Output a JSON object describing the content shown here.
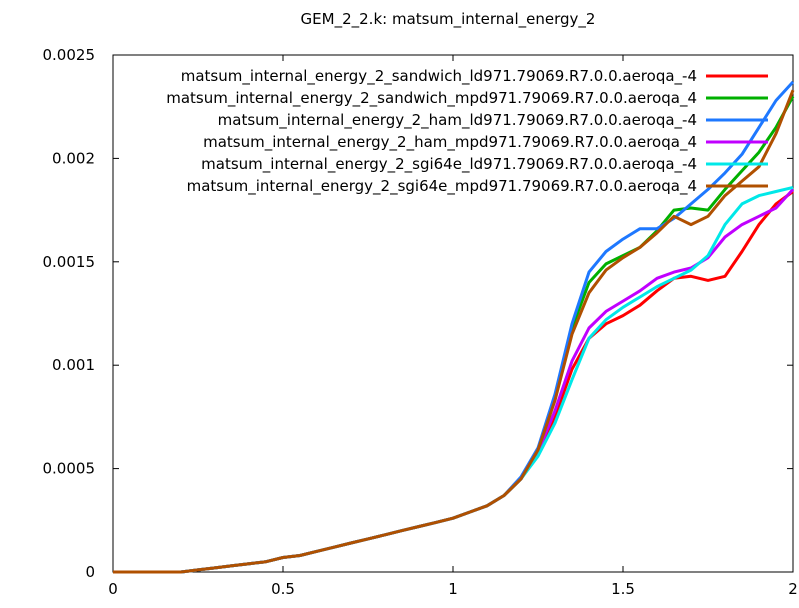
{
  "chart_data": {
    "type": "line",
    "title": "GEM_2_2.k: matsum_internal_energy_2",
    "xlabel": "",
    "ylabel": "",
    "xlim": [
      0,
      2
    ],
    "ylim": [
      0,
      0.0025
    ],
    "grid": false,
    "legend_position": "top-right",
    "x_ticks": [
      {
        "value": 0,
        "label": "0"
      },
      {
        "value": 0.5,
        "label": "0.5"
      },
      {
        "value": 1,
        "label": "1"
      },
      {
        "value": 1.5,
        "label": "1.5"
      },
      {
        "value": 2,
        "label": "2"
      }
    ],
    "y_ticks": [
      {
        "value": 0,
        "label": "0"
      },
      {
        "value": 0.0005,
        "label": "0.0005"
      },
      {
        "value": 0.001,
        "label": "0.001"
      },
      {
        "value": 0.0015,
        "label": "0.0015"
      },
      {
        "value": 0.002,
        "label": "0.002"
      },
      {
        "value": 0.0025,
        "label": "0.0025"
      }
    ],
    "series": [
      {
        "name": "matsum_internal_energy_2_sandwich_ld971.79069.R7.0.0.aeroqa_-4",
        "color": "#ff0000",
        "points": [
          [
            0,
            0
          ],
          [
            0.05,
            0
          ],
          [
            0.1,
            0
          ],
          [
            0.15,
            0
          ],
          [
            0.2,
            0
          ],
          [
            0.25,
            1e-05
          ],
          [
            0.3,
            2e-05
          ],
          [
            0.35,
            3e-05
          ],
          [
            0.4,
            4e-05
          ],
          [
            0.45,
            5e-05
          ],
          [
            0.5,
            7e-05
          ],
          [
            0.55,
            8e-05
          ],
          [
            0.6,
            0.0001
          ],
          [
            0.65,
            0.00012
          ],
          [
            0.7,
            0.00014
          ],
          [
            0.75,
            0.00016
          ],
          [
            0.8,
            0.00018
          ],
          [
            0.85,
            0.0002
          ],
          [
            0.9,
            0.00022
          ],
          [
            0.95,
            0.00024
          ],
          [
            1.0,
            0.00026
          ],
          [
            1.05,
            0.00029
          ],
          [
            1.1,
            0.00032
          ],
          [
            1.15,
            0.00037
          ],
          [
            1.2,
            0.00045
          ],
          [
            1.25,
            0.00057
          ],
          [
            1.3,
            0.00075
          ],
          [
            1.35,
            0.00098
          ],
          [
            1.4,
            0.00113
          ],
          [
            1.45,
            0.0012
          ],
          [
            1.5,
            0.00124
          ],
          [
            1.55,
            0.00129
          ],
          [
            1.6,
            0.00136
          ],
          [
            1.65,
            0.00142
          ],
          [
            1.7,
            0.00143
          ],
          [
            1.75,
            0.00141
          ],
          [
            1.8,
            0.00143
          ],
          [
            1.85,
            0.00155
          ],
          [
            1.9,
            0.00168
          ],
          [
            1.95,
            0.00178
          ],
          [
            2.0,
            0.00184
          ]
        ]
      },
      {
        "name": "matsum_internal_energy_2_sandwich_mpd971.79069.R7.0.0.aeroqa_4",
        "color": "#00b000",
        "points": [
          [
            0,
            0
          ],
          [
            0.05,
            0
          ],
          [
            0.1,
            0
          ],
          [
            0.15,
            0
          ],
          [
            0.2,
            0
          ],
          [
            0.25,
            1e-05
          ],
          [
            0.3,
            2e-05
          ],
          [
            0.35,
            3e-05
          ],
          [
            0.4,
            4e-05
          ],
          [
            0.45,
            5e-05
          ],
          [
            0.5,
            7e-05
          ],
          [
            0.55,
            8e-05
          ],
          [
            0.6,
            0.0001
          ],
          [
            0.65,
            0.00012
          ],
          [
            0.7,
            0.00014
          ],
          [
            0.75,
            0.00016
          ],
          [
            0.8,
            0.00018
          ],
          [
            0.85,
            0.0002
          ],
          [
            0.9,
            0.00022
          ],
          [
            0.95,
            0.00024
          ],
          [
            1.0,
            0.00026
          ],
          [
            1.05,
            0.00029
          ],
          [
            1.1,
            0.00032
          ],
          [
            1.15,
            0.00037
          ],
          [
            1.2,
            0.00045
          ],
          [
            1.25,
            0.00059
          ],
          [
            1.3,
            0.00084
          ],
          [
            1.35,
            0.00118
          ],
          [
            1.4,
            0.0014
          ],
          [
            1.45,
            0.00149
          ],
          [
            1.5,
            0.00153
          ],
          [
            1.55,
            0.00157
          ],
          [
            1.6,
            0.00165
          ],
          [
            1.65,
            0.00175
          ],
          [
            1.7,
            0.00176
          ],
          [
            1.75,
            0.00175
          ],
          [
            1.8,
            0.00185
          ],
          [
            1.85,
            0.00194
          ],
          [
            1.9,
            0.00203
          ],
          [
            1.95,
            0.00215
          ],
          [
            2.0,
            0.0023
          ]
        ]
      },
      {
        "name": "matsum_internal_energy_2_ham_ld971.79069.R7.0.0.aeroqa_-4",
        "color": "#1e78ff",
        "points": [
          [
            0,
            0
          ],
          [
            0.05,
            0
          ],
          [
            0.1,
            0
          ],
          [
            0.15,
            0
          ],
          [
            0.2,
            0
          ],
          [
            0.25,
            1e-05
          ],
          [
            0.3,
            2e-05
          ],
          [
            0.35,
            3e-05
          ],
          [
            0.4,
            4e-05
          ],
          [
            0.45,
            5e-05
          ],
          [
            0.5,
            7e-05
          ],
          [
            0.55,
            8e-05
          ],
          [
            0.6,
            0.0001
          ],
          [
            0.65,
            0.00012
          ],
          [
            0.7,
            0.00014
          ],
          [
            0.75,
            0.00016
          ],
          [
            0.8,
            0.00018
          ],
          [
            0.85,
            0.0002
          ],
          [
            0.9,
            0.00022
          ],
          [
            0.95,
            0.00024
          ],
          [
            1.0,
            0.00026
          ],
          [
            1.05,
            0.00029
          ],
          [
            1.1,
            0.00032
          ],
          [
            1.15,
            0.00037
          ],
          [
            1.2,
            0.00046
          ],
          [
            1.25,
            0.0006
          ],
          [
            1.3,
            0.00086
          ],
          [
            1.35,
            0.0012
          ],
          [
            1.4,
            0.00145
          ],
          [
            1.45,
            0.00155
          ],
          [
            1.5,
            0.00161
          ],
          [
            1.55,
            0.00166
          ],
          [
            1.6,
            0.00166
          ],
          [
            1.65,
            0.00171
          ],
          [
            1.7,
            0.00178
          ],
          [
            1.75,
            0.00185
          ],
          [
            1.8,
            0.00193
          ],
          [
            1.85,
            0.00202
          ],
          [
            1.9,
            0.00215
          ],
          [
            1.95,
            0.00228
          ],
          [
            2.0,
            0.00237
          ]
        ]
      },
      {
        "name": "matsum_internal_energy_2_ham_mpd971.79069.R7.0.0.aeroqa_4",
        "color": "#c000ff",
        "points": [
          [
            0,
            0
          ],
          [
            0.05,
            0
          ],
          [
            0.1,
            0
          ],
          [
            0.15,
            0
          ],
          [
            0.2,
            0
          ],
          [
            0.25,
            1e-05
          ],
          [
            0.3,
            2e-05
          ],
          [
            0.35,
            3e-05
          ],
          [
            0.4,
            4e-05
          ],
          [
            0.45,
            5e-05
          ],
          [
            0.5,
            7e-05
          ],
          [
            0.55,
            8e-05
          ],
          [
            0.6,
            0.0001
          ],
          [
            0.65,
            0.00012
          ],
          [
            0.7,
            0.00014
          ],
          [
            0.75,
            0.00016
          ],
          [
            0.8,
            0.00018
          ],
          [
            0.85,
            0.0002
          ],
          [
            0.9,
            0.00022
          ],
          [
            0.95,
            0.00024
          ],
          [
            1.0,
            0.00026
          ],
          [
            1.05,
            0.00029
          ],
          [
            1.1,
            0.00032
          ],
          [
            1.15,
            0.00037
          ],
          [
            1.2,
            0.00045
          ],
          [
            1.25,
            0.00058
          ],
          [
            1.3,
            0.00078
          ],
          [
            1.35,
            0.00102
          ],
          [
            1.4,
            0.00118
          ],
          [
            1.45,
            0.00126
          ],
          [
            1.5,
            0.00131
          ],
          [
            1.55,
            0.00136
          ],
          [
            1.6,
            0.00142
          ],
          [
            1.65,
            0.00145
          ],
          [
            1.7,
            0.00147
          ],
          [
            1.75,
            0.00152
          ],
          [
            1.8,
            0.00162
          ],
          [
            1.85,
            0.00168
          ],
          [
            1.9,
            0.00172
          ],
          [
            1.95,
            0.00176
          ],
          [
            2.0,
            0.00185
          ]
        ]
      },
      {
        "name": "matsum_internal_energy_2_sgi64e_ld971.79069.R7.0.0.aeroqa_-4",
        "color": "#00e8e8",
        "points": [
          [
            0,
            0
          ],
          [
            0.05,
            0
          ],
          [
            0.1,
            0
          ],
          [
            0.15,
            0
          ],
          [
            0.2,
            0
          ],
          [
            0.25,
            1e-05
          ],
          [
            0.3,
            2e-05
          ],
          [
            0.35,
            3e-05
          ],
          [
            0.4,
            4e-05
          ],
          [
            0.45,
            5e-05
          ],
          [
            0.5,
            7e-05
          ],
          [
            0.55,
            8e-05
          ],
          [
            0.6,
            0.0001
          ],
          [
            0.65,
            0.00012
          ],
          [
            0.7,
            0.00014
          ],
          [
            0.75,
            0.00016
          ],
          [
            0.8,
            0.00018
          ],
          [
            0.85,
            0.0002
          ],
          [
            0.9,
            0.00022
          ],
          [
            0.95,
            0.00024
          ],
          [
            1.0,
            0.00026
          ],
          [
            1.05,
            0.00029
          ],
          [
            1.1,
            0.00032
          ],
          [
            1.15,
            0.00037
          ],
          [
            1.2,
            0.00045
          ],
          [
            1.25,
            0.00056
          ],
          [
            1.3,
            0.00072
          ],
          [
            1.35,
            0.00093
          ],
          [
            1.4,
            0.00113
          ],
          [
            1.45,
            0.00122
          ],
          [
            1.5,
            0.00128
          ],
          [
            1.55,
            0.00133
          ],
          [
            1.6,
            0.00138
          ],
          [
            1.65,
            0.00142
          ],
          [
            1.7,
            0.00146
          ],
          [
            1.75,
            0.00153
          ],
          [
            1.8,
            0.00168
          ],
          [
            1.85,
            0.00178
          ],
          [
            1.9,
            0.00182
          ],
          [
            1.95,
            0.00184
          ],
          [
            2.0,
            0.00186
          ]
        ]
      },
      {
        "name": "matsum_internal_energy_2_sgi64e_mpd971.79069.R7.0.0.aeroqa_4",
        "color": "#b05000",
        "points": [
          [
            0,
            0
          ],
          [
            0.05,
            0
          ],
          [
            0.1,
            0
          ],
          [
            0.15,
            0
          ],
          [
            0.2,
            0
          ],
          [
            0.25,
            1e-05
          ],
          [
            0.3,
            2e-05
          ],
          [
            0.35,
            3e-05
          ],
          [
            0.4,
            4e-05
          ],
          [
            0.45,
            5e-05
          ],
          [
            0.5,
            7e-05
          ],
          [
            0.55,
            8e-05
          ],
          [
            0.6,
            0.0001
          ],
          [
            0.65,
            0.00012
          ],
          [
            0.7,
            0.00014
          ],
          [
            0.75,
            0.00016
          ],
          [
            0.8,
            0.00018
          ],
          [
            0.85,
            0.0002
          ],
          [
            0.9,
            0.00022
          ],
          [
            0.95,
            0.00024
          ],
          [
            1.0,
            0.00026
          ],
          [
            1.05,
            0.00029
          ],
          [
            1.1,
            0.00032
          ],
          [
            1.15,
            0.00037
          ],
          [
            1.2,
            0.00045
          ],
          [
            1.25,
            0.00059
          ],
          [
            1.3,
            0.00083
          ],
          [
            1.35,
            0.00115
          ],
          [
            1.4,
            0.00135
          ],
          [
            1.45,
            0.00146
          ],
          [
            1.5,
            0.00152
          ],
          [
            1.55,
            0.00157
          ],
          [
            1.6,
            0.00164
          ],
          [
            1.65,
            0.00172
          ],
          [
            1.7,
            0.00168
          ],
          [
            1.75,
            0.00172
          ],
          [
            1.8,
            0.00182
          ],
          [
            1.85,
            0.00189
          ],
          [
            1.9,
            0.00196
          ],
          [
            1.95,
            0.00212
          ],
          [
            2.0,
            0.00233
          ]
        ]
      }
    ]
  }
}
